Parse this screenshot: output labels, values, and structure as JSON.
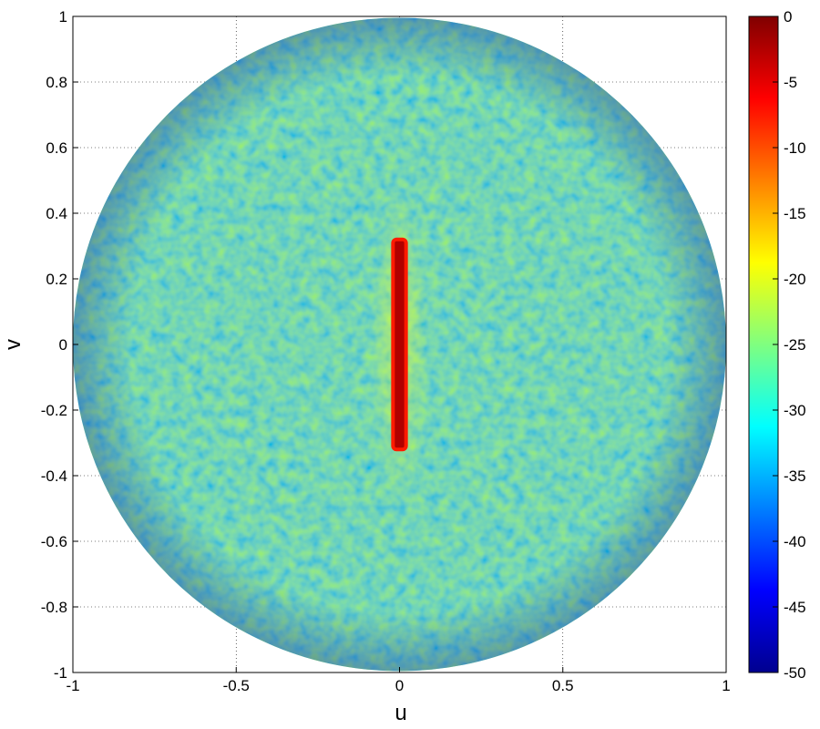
{
  "chart_data": {
    "type": "heatmap",
    "title": "",
    "xlabel": "u",
    "ylabel": "v",
    "xlim": [
      -1,
      1
    ],
    "ylim": [
      -1,
      1
    ],
    "x_ticks": [
      -1,
      -0.5,
      0,
      0.5,
      1
    ],
    "x_tick_labels": [
      "-1",
      "-0.5",
      "0",
      "0.5",
      "1"
    ],
    "y_ticks": [
      1,
      0.8,
      0.6,
      0.4,
      0.2,
      0,
      -0.2,
      -0.4,
      -0.6,
      -0.8,
      -1
    ],
    "y_tick_labels": [
      "1",
      "0.8",
      "0.6",
      "0.4",
      "0.2",
      "0",
      "-0.2",
      "-0.4",
      "-0.6",
      "-0.8",
      "-1"
    ],
    "grid": true,
    "colormap": "jet",
    "colorbar": {
      "range": [
        -50,
        0
      ],
      "ticks": [
        0,
        -5,
        -10,
        -15,
        -20,
        -25,
        -30,
        -35,
        -40,
        -45,
        -50
      ],
      "tick_labels": [
        "0",
        "-5",
        "-10",
        "-15",
        "-20",
        "-25",
        "-30",
        "-35",
        "-40",
        "-45",
        "-50"
      ],
      "placement": "right"
    },
    "region": {
      "shape": "disk",
      "center": [
        0,
        0
      ],
      "radius": 1,
      "background_level": -28,
      "background_range": [
        -45,
        -20
      ]
    },
    "features": [
      {
        "shape": "vertical-bar",
        "u_range": [
          -0.02,
          0.02
        ],
        "v_range": [
          -0.32,
          0.32
        ],
        "level": 0
      }
    ]
  }
}
